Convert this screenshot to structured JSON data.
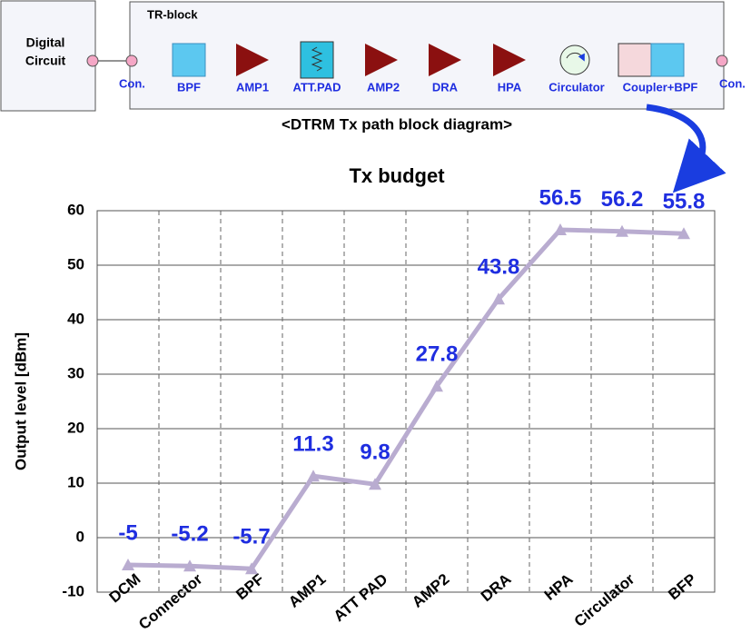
{
  "diagram": {
    "left_block": [
      "Digital",
      "Circuit"
    ],
    "tr_block_title": "TR-block",
    "connectors": [
      "Con.",
      "Con."
    ],
    "components": [
      "BPF",
      "AMP1",
      "ATT.PAD",
      "AMP2",
      "DRA",
      "HPA",
      "Circulator",
      "Coupler+BPF"
    ],
    "caption": "<DTRM Tx path  block diagram>"
  },
  "chart_data": {
    "type": "line",
    "title": "Tx budget",
    "y_label": "Output level [dBm]",
    "categories": [
      "DCM",
      "Connector",
      "BPF",
      "AMP1",
      "ATT PAD",
      "AMP2",
      "DRA",
      "HPA",
      "Circulator",
      "BFP"
    ],
    "values": [
      -5,
      -5.2,
      -5.7,
      11.3,
      9.8,
      27.8,
      43.8,
      56.5,
      56.2,
      55.8
    ],
    "color": "#b9acd0",
    "label_color": "#1f2ee0",
    "ylim": [
      -10,
      60
    ],
    "yticks": [
      -10,
      0,
      10,
      20,
      30,
      40,
      50,
      60
    ],
    "grid": true
  }
}
